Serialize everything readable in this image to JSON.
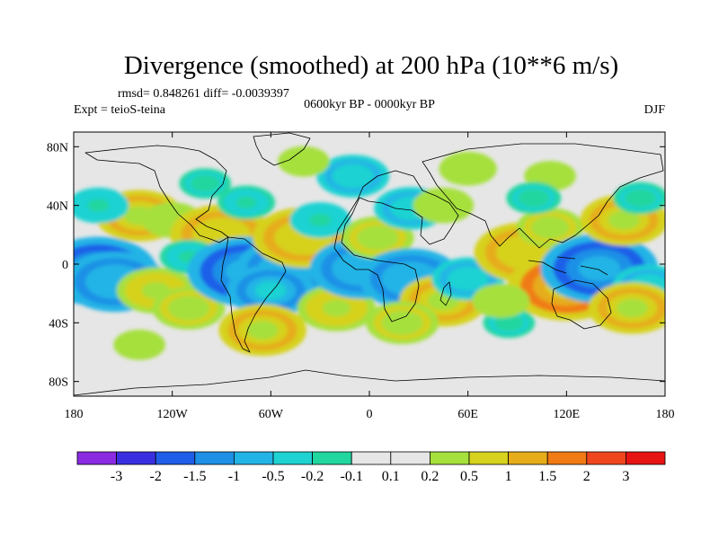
{
  "chart_data": {
    "type": "heatmap",
    "title": "Divergence (smoothed) at 200 hPa (10**6 m/s)",
    "stats": "rmsd= 0.848261 diff= -0.0039397",
    "experiment": "Expt = teioS-teina",
    "period": "0600kyr BP - 0000kyr BP",
    "season": "DJF",
    "xlim": [
      -180,
      180
    ],
    "ylim": [
      -90,
      90
    ],
    "x_ticks": [
      {
        "value": -180,
        "label": "180"
      },
      {
        "value": -120,
        "label": "120W"
      },
      {
        "value": -60,
        "label": "60W"
      },
      {
        "value": 0,
        "label": "0"
      },
      {
        "value": 60,
        "label": "60E"
      },
      {
        "value": 120,
        "label": "120E"
      },
      {
        "value": 180,
        "label": "180"
      }
    ],
    "y_ticks": [
      {
        "value": 80,
        "label": "80N"
      },
      {
        "value": 40,
        "label": "40N"
      },
      {
        "value": 0,
        "label": "0"
      },
      {
        "value": -40,
        "label": "40S"
      },
      {
        "value": -80,
        "label": "80S"
      }
    ],
    "colorbar": {
      "labels": [
        "-3",
        "-2",
        "-1.5",
        "-1",
        "-0.5",
        "-0.2",
        "-0.1",
        "0.1",
        "0.2",
        "0.5",
        "1",
        "1.5",
        "2",
        "3"
      ],
      "colors": [
        "#8a2be2",
        "#3a2fe0",
        "#1f5ee8",
        "#1e90e6",
        "#22b4e6",
        "#1ed2d2",
        "#22d6a0",
        "#e6e6e6",
        "#a6e03c",
        "#d6d21e",
        "#e6ac1a",
        "#f07a14",
        "#f0461e",
        "#e61414"
      ]
    },
    "field_anomalies": [
      {
        "lon": -165,
        "lat": -5,
        "value": -2.5
      },
      {
        "lon": -155,
        "lat": -12,
        "value": -2.0
      },
      {
        "lon": -130,
        "lat": -18,
        "value": 1.2
      },
      {
        "lon": -110,
        "lat": -30,
        "value": 1.0
      },
      {
        "lon": -140,
        "lat": 33,
        "value": 1.5
      },
      {
        "lon": -165,
        "lat": 40,
        "value": -0.6
      },
      {
        "lon": -120,
        "lat": 30,
        "value": 0.6
      },
      {
        "lon": -90,
        "lat": 20,
        "value": 2.0
      },
      {
        "lon": -110,
        "lat": 5,
        "value": -0.5
      },
      {
        "lon": -75,
        "lat": -5,
        "value": -2.5
      },
      {
        "lon": -50,
        "lat": -3,
        "value": -2.0
      },
      {
        "lon": -60,
        "lat": -18,
        "value": -1.5
      },
      {
        "lon": -40,
        "lat": 18,
        "value": 2.0
      },
      {
        "lon": -30,
        "lat": 30,
        "value": -0.6
      },
      {
        "lon": -75,
        "lat": 42,
        "value": -0.5
      },
      {
        "lon": -100,
        "lat": 55,
        "value": -0.3
      },
      {
        "lon": -20,
        "lat": -30,
        "value": 1.2
      },
      {
        "lon": -65,
        "lat": -45,
        "value": 1.5
      },
      {
        "lon": -5,
        "lat": -3,
        "value": -2.0
      },
      {
        "lon": 5,
        "lat": 18,
        "value": 1.0
      },
      {
        "lon": 25,
        "lat": 38,
        "value": -1.0
      },
      {
        "lon": 45,
        "lat": 40,
        "value": 0.6
      },
      {
        "lon": 25,
        "lat": -10,
        "value": -2.0
      },
      {
        "lon": 45,
        "lat": -25,
        "value": 1.5
      },
      {
        "lon": 20,
        "lat": -40,
        "value": 1.0
      },
      {
        "lon": 60,
        "lat": -10,
        "value": -1.0
      },
      {
        "lon": 95,
        "lat": 8,
        "value": 2.0
      },
      {
        "lon": 110,
        "lat": 25,
        "value": 0.8
      },
      {
        "lon": 120,
        "lat": -15,
        "value": 2.5
      },
      {
        "lon": 140,
        "lat": -3,
        "value": -2.5
      },
      {
        "lon": 155,
        "lat": 30,
        "value": 1.5
      },
      {
        "lon": 170,
        "lat": -15,
        "value": -1.0
      },
      {
        "lon": 160,
        "lat": -30,
        "value": 1.5
      },
      {
        "lon": 165,
        "lat": 45,
        "value": -0.4
      },
      {
        "lon": -10,
        "lat": 60,
        "value": -1.0
      },
      {
        "lon": 60,
        "lat": 65,
        "value": 0.5
      },
      {
        "lon": 110,
        "lat": 60,
        "value": 0.3
      },
      {
        "lon": -40,
        "lat": 70,
        "value": 0.3
      },
      {
        "lon": 100,
        "lat": 45,
        "value": -0.4
      },
      {
        "lon": 85,
        "lat": -40,
        "value": -0.3
      },
      {
        "lon": -140,
        "lat": -55,
        "value": 0.3
      },
      {
        "lon": 80,
        "lat": -25,
        "value": 0.5
      }
    ]
  }
}
